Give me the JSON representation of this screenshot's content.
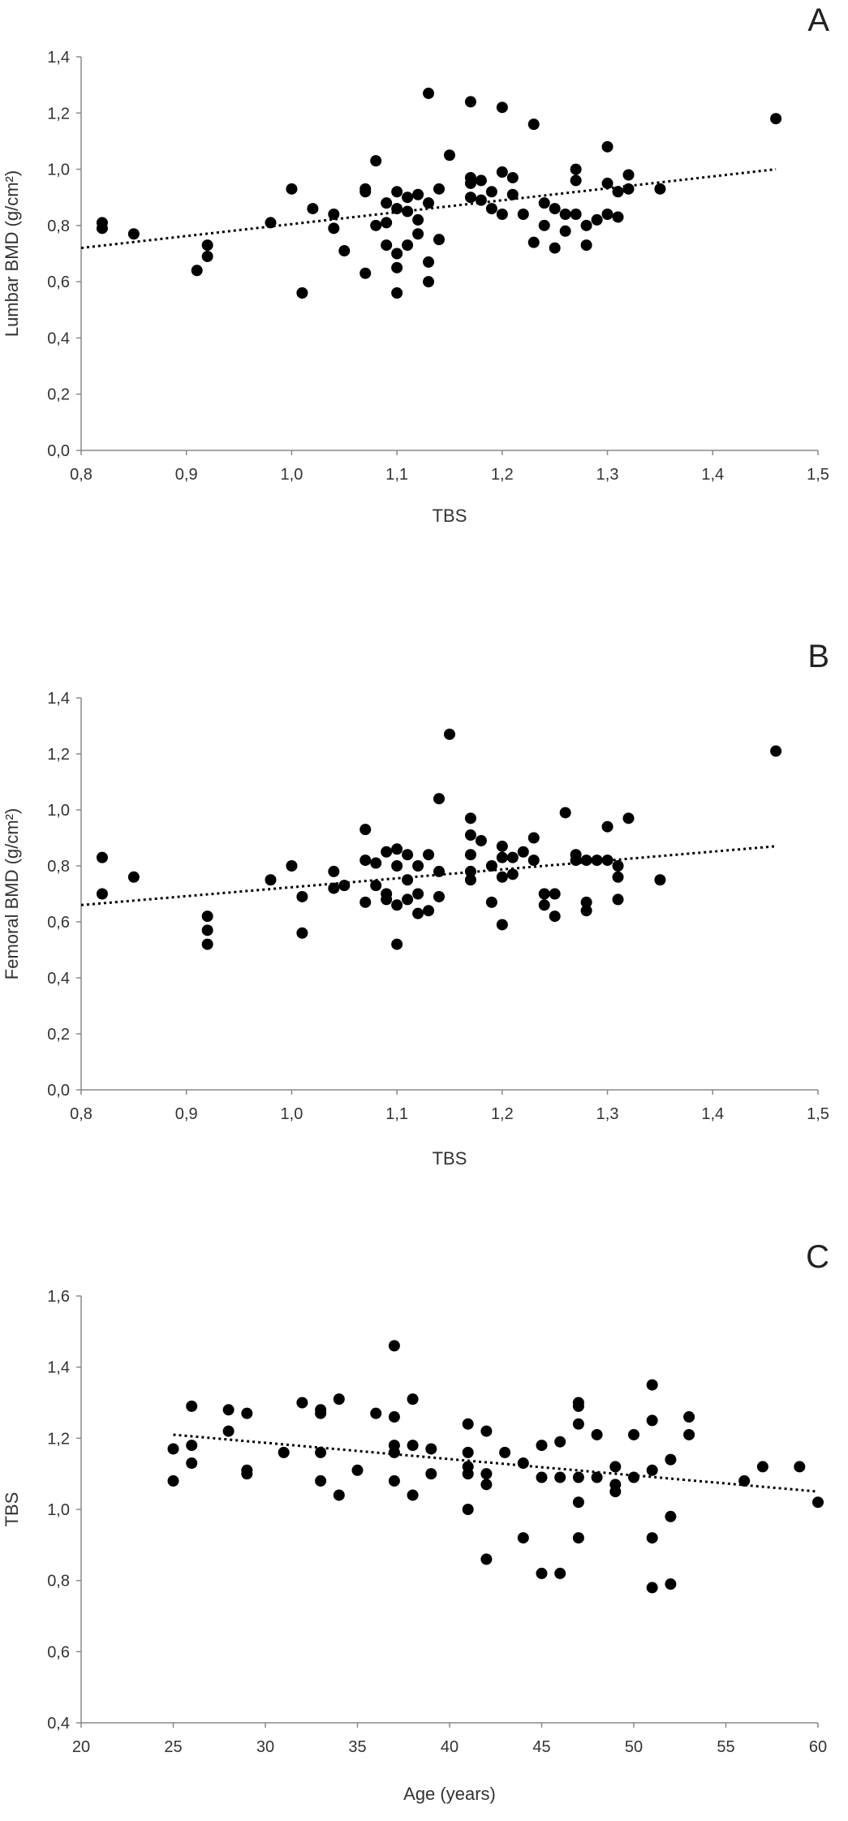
{
  "chart_data": [
    {
      "type": "scatter",
      "panel_label": "A",
      "xlabel": "TBS",
      "ylabel": "Lumbar BMD (g/cm²)",
      "xlim": [
        0.8,
        1.5
      ],
      "ylim": [
        0.0,
        1.4
      ],
      "xticks": [
        "0,8",
        "0,9",
        "1,0",
        "1,1",
        "1,2",
        "1,3",
        "1,4",
        "1,5"
      ],
      "yticks": [
        "0,0",
        "0,2",
        "0,4",
        "0,6",
        "0,8",
        "1,0",
        "1,2",
        "1,4"
      ],
      "trendline": {
        "x": [
          0.8,
          1.46
        ],
        "y": [
          0.72,
          1.0
        ]
      },
      "points": [
        [
          0.82,
          0.81
        ],
        [
          0.82,
          0.79
        ],
        [
          0.85,
          0.77
        ],
        [
          0.92,
          0.73
        ],
        [
          0.92,
          0.69
        ],
        [
          0.91,
          0.64
        ],
        [
          0.98,
          0.81
        ],
        [
          1.0,
          0.93
        ],
        [
          1.02,
          0.86
        ],
        [
          1.01,
          0.56
        ],
        [
          1.04,
          0.84
        ],
        [
          1.04,
          0.79
        ],
        [
          1.05,
          0.71
        ],
        [
          1.07,
          0.93
        ],
        [
          1.07,
          0.92
        ],
        [
          1.07,
          0.63
        ],
        [
          1.08,
          1.03
        ],
        [
          1.08,
          0.8
        ],
        [
          1.09,
          0.88
        ],
        [
          1.09,
          0.81
        ],
        [
          1.09,
          0.73
        ],
        [
          1.1,
          0.86
        ],
        [
          1.1,
          0.7
        ],
        [
          1.1,
          0.92
        ],
        [
          1.1,
          0.65
        ],
        [
          1.1,
          0.56
        ],
        [
          1.11,
          0.9
        ],
        [
          1.11,
          0.85
        ],
        [
          1.11,
          0.73
        ],
        [
          1.12,
          0.91
        ],
        [
          1.12,
          0.82
        ],
        [
          1.12,
          0.77
        ],
        [
          1.13,
          0.88
        ],
        [
          1.13,
          0.67
        ],
        [
          1.13,
          0.6
        ],
        [
          1.14,
          0.93
        ],
        [
          1.13,
          1.27
        ],
        [
          1.14,
          0.75
        ],
        [
          1.15,
          1.05
        ],
        [
          1.17,
          1.24
        ],
        [
          1.17,
          0.97
        ],
        [
          1.17,
          0.9
        ],
        [
          1.17,
          0.95
        ],
        [
          1.18,
          0.96
        ],
        [
          1.18,
          0.89
        ],
        [
          1.19,
          0.86
        ],
        [
          1.19,
          0.92
        ],
        [
          1.2,
          1.22
        ],
        [
          1.2,
          0.99
        ],
        [
          1.2,
          0.84
        ],
        [
          1.21,
          0.97
        ],
        [
          1.21,
          0.91
        ],
        [
          1.22,
          0.84
        ],
        [
          1.23,
          1.16
        ],
        [
          1.23,
          0.74
        ],
        [
          1.24,
          0.88
        ],
        [
          1.24,
          0.8
        ],
        [
          1.25,
          0.86
        ],
        [
          1.25,
          0.72
        ],
        [
          1.26,
          0.78
        ],
        [
          1.26,
          0.84
        ],
        [
          1.27,
          1.0
        ],
        [
          1.27,
          0.96
        ],
        [
          1.27,
          0.84
        ],
        [
          1.28,
          0.73
        ],
        [
          1.28,
          0.8
        ],
        [
          1.29,
          0.82
        ],
        [
          1.3,
          0.95
        ],
        [
          1.3,
          0.84
        ],
        [
          1.3,
          1.08
        ],
        [
          1.31,
          0.92
        ],
        [
          1.31,
          0.83
        ],
        [
          1.32,
          0.98
        ],
        [
          1.32,
          0.93
        ],
        [
          1.35,
          0.93
        ],
        [
          1.46,
          1.18
        ]
      ]
    },
    {
      "type": "scatter",
      "panel_label": "B",
      "xlabel": "TBS",
      "ylabel": "Femoral BMD (g/cm²)",
      "xlim": [
        0.8,
        1.5
      ],
      "ylim": [
        0.0,
        1.4
      ],
      "xticks": [
        "0,8",
        "0,9",
        "1,0",
        "1,1",
        "1,2",
        "1,3",
        "1,4",
        "1,5"
      ],
      "yticks": [
        "0,0",
        "0,2",
        "0,4",
        "0,6",
        "0,8",
        "1,0",
        "1,2",
        "1,4"
      ],
      "trendline": {
        "x": [
          0.8,
          1.46
        ],
        "y": [
          0.66,
          0.87
        ]
      },
      "points": [
        [
          0.82,
          0.83
        ],
        [
          0.82,
          0.7
        ],
        [
          0.85,
          0.76
        ],
        [
          0.92,
          0.62
        ],
        [
          0.92,
          0.57
        ],
        [
          0.92,
          0.52
        ],
        [
          0.98,
          0.75
        ],
        [
          1.0,
          0.8
        ],
        [
          1.01,
          0.69
        ],
        [
          1.01,
          0.56
        ],
        [
          1.04,
          0.78
        ],
        [
          1.04,
          0.72
        ],
        [
          1.05,
          0.73
        ],
        [
          1.07,
          0.93
        ],
        [
          1.07,
          0.82
        ],
        [
          1.07,
          0.67
        ],
        [
          1.08,
          0.81
        ],
        [
          1.08,
          0.73
        ],
        [
          1.09,
          0.85
        ],
        [
          1.09,
          0.68
        ],
        [
          1.09,
          0.7
        ],
        [
          1.1,
          0.86
        ],
        [
          1.1,
          0.8
        ],
        [
          1.1,
          0.66
        ],
        [
          1.1,
          0.52
        ],
        [
          1.11,
          0.84
        ],
        [
          1.11,
          0.75
        ],
        [
          1.11,
          0.68
        ],
        [
          1.12,
          0.8
        ],
        [
          1.12,
          0.7
        ],
        [
          1.12,
          0.63
        ],
        [
          1.13,
          0.84
        ],
        [
          1.13,
          0.64
        ],
        [
          1.14,
          1.04
        ],
        [
          1.14,
          0.78
        ],
        [
          1.14,
          0.69
        ],
        [
          1.15,
          1.27
        ],
        [
          1.17,
          0.97
        ],
        [
          1.17,
          0.91
        ],
        [
          1.17,
          0.84
        ],
        [
          1.17,
          0.78
        ],
        [
          1.17,
          0.75
        ],
        [
          1.18,
          0.89
        ],
        [
          1.19,
          0.67
        ],
        [
          1.19,
          0.8
        ],
        [
          1.2,
          0.87
        ],
        [
          1.2,
          0.83
        ],
        [
          1.2,
          0.76
        ],
        [
          1.2,
          0.59
        ],
        [
          1.21,
          0.83
        ],
        [
          1.21,
          0.77
        ],
        [
          1.22,
          0.85
        ],
        [
          1.23,
          0.9
        ],
        [
          1.23,
          0.82
        ],
        [
          1.24,
          0.7
        ],
        [
          1.24,
          0.66
        ],
        [
          1.25,
          0.7
        ],
        [
          1.25,
          0.62
        ],
        [
          1.26,
          0.99
        ],
        [
          1.27,
          0.84
        ],
        [
          1.27,
          0.82
        ],
        [
          1.28,
          0.67
        ],
        [
          1.28,
          0.64
        ],
        [
          1.28,
          0.82
        ],
        [
          1.29,
          0.82
        ],
        [
          1.3,
          0.82
        ],
        [
          1.3,
          0.94
        ],
        [
          1.31,
          0.8
        ],
        [
          1.31,
          0.76
        ],
        [
          1.31,
          0.68
        ],
        [
          1.32,
          0.97
        ],
        [
          1.35,
          0.75
        ],
        [
          1.46,
          1.21
        ]
      ]
    },
    {
      "type": "scatter",
      "panel_label": "C",
      "xlabel": "Age (years)",
      "ylabel": "TBS",
      "xlim": [
        20,
        60
      ],
      "ylim": [
        0.4,
        1.6
      ],
      "xticks": [
        "20",
        "25",
        "30",
        "35",
        "40",
        "45",
        "50",
        "55",
        "60"
      ],
      "yticks": [
        "0,4",
        "0,6",
        "0,8",
        "1,0",
        "1,2",
        "1,4",
        "1,6"
      ],
      "trendline": {
        "x": [
          25,
          60
        ],
        "y": [
          1.21,
          1.05
        ]
      },
      "points": [
        [
          25,
          1.17
        ],
        [
          25,
          1.08
        ],
        [
          26,
          1.29
        ],
        [
          26,
          1.18
        ],
        [
          26,
          1.13
        ],
        [
          28,
          1.28
        ],
        [
          28,
          1.22
        ],
        [
          29,
          1.27
        ],
        [
          29,
          1.11
        ],
        [
          29,
          1.1
        ],
        [
          31,
          1.16
        ],
        [
          32,
          1.3
        ],
        [
          33,
          1.28
        ],
        [
          33,
          1.27
        ],
        [
          33,
          1.16
        ],
        [
          33,
          1.08
        ],
        [
          34,
          1.31
        ],
        [
          34,
          1.04
        ],
        [
          35,
          1.11
        ],
        [
          36,
          1.27
        ],
        [
          37,
          1.46
        ],
        [
          37,
          1.26
        ],
        [
          37,
          1.18
        ],
        [
          37,
          1.16
        ],
        [
          37,
          1.08
        ],
        [
          38,
          1.31
        ],
        [
          38,
          1.18
        ],
        [
          38,
          1.04
        ],
        [
          39,
          1.17
        ],
        [
          39,
          1.1
        ],
        [
          41,
          1.24
        ],
        [
          41,
          1.16
        ],
        [
          41,
          1.12
        ],
        [
          41,
          1.1
        ],
        [
          41,
          1.0
        ],
        [
          42,
          1.22
        ],
        [
          42,
          1.1
        ],
        [
          42,
          1.07
        ],
        [
          42,
          0.86
        ],
        [
          43,
          1.16
        ],
        [
          44,
          1.13
        ],
        [
          44,
          0.92
        ],
        [
          45,
          1.18
        ],
        [
          45,
          1.09
        ],
        [
          45,
          0.82
        ],
        [
          46,
          1.19
        ],
        [
          46,
          1.09
        ],
        [
          46,
          0.82
        ],
        [
          47,
          1.3
        ],
        [
          47,
          1.29
        ],
        [
          47,
          1.24
        ],
        [
          47,
          1.09
        ],
        [
          47,
          1.02
        ],
        [
          47,
          0.92
        ],
        [
          48,
          1.21
        ],
        [
          48,
          1.09
        ],
        [
          49,
          1.12
        ],
        [
          49,
          1.07
        ],
        [
          49,
          1.05
        ],
        [
          50,
          1.21
        ],
        [
          50,
          1.09
        ],
        [
          51,
          1.35
        ],
        [
          51,
          1.25
        ],
        [
          51,
          1.11
        ],
        [
          51,
          0.92
        ],
        [
          51,
          0.78
        ],
        [
          52,
          1.14
        ],
        [
          52,
          0.98
        ],
        [
          52,
          0.79
        ],
        [
          53,
          1.26
        ],
        [
          53,
          1.21
        ],
        [
          56,
          1.08
        ],
        [
          57,
          1.12
        ],
        [
          59,
          1.12
        ],
        [
          60,
          1.02
        ]
      ]
    }
  ]
}
